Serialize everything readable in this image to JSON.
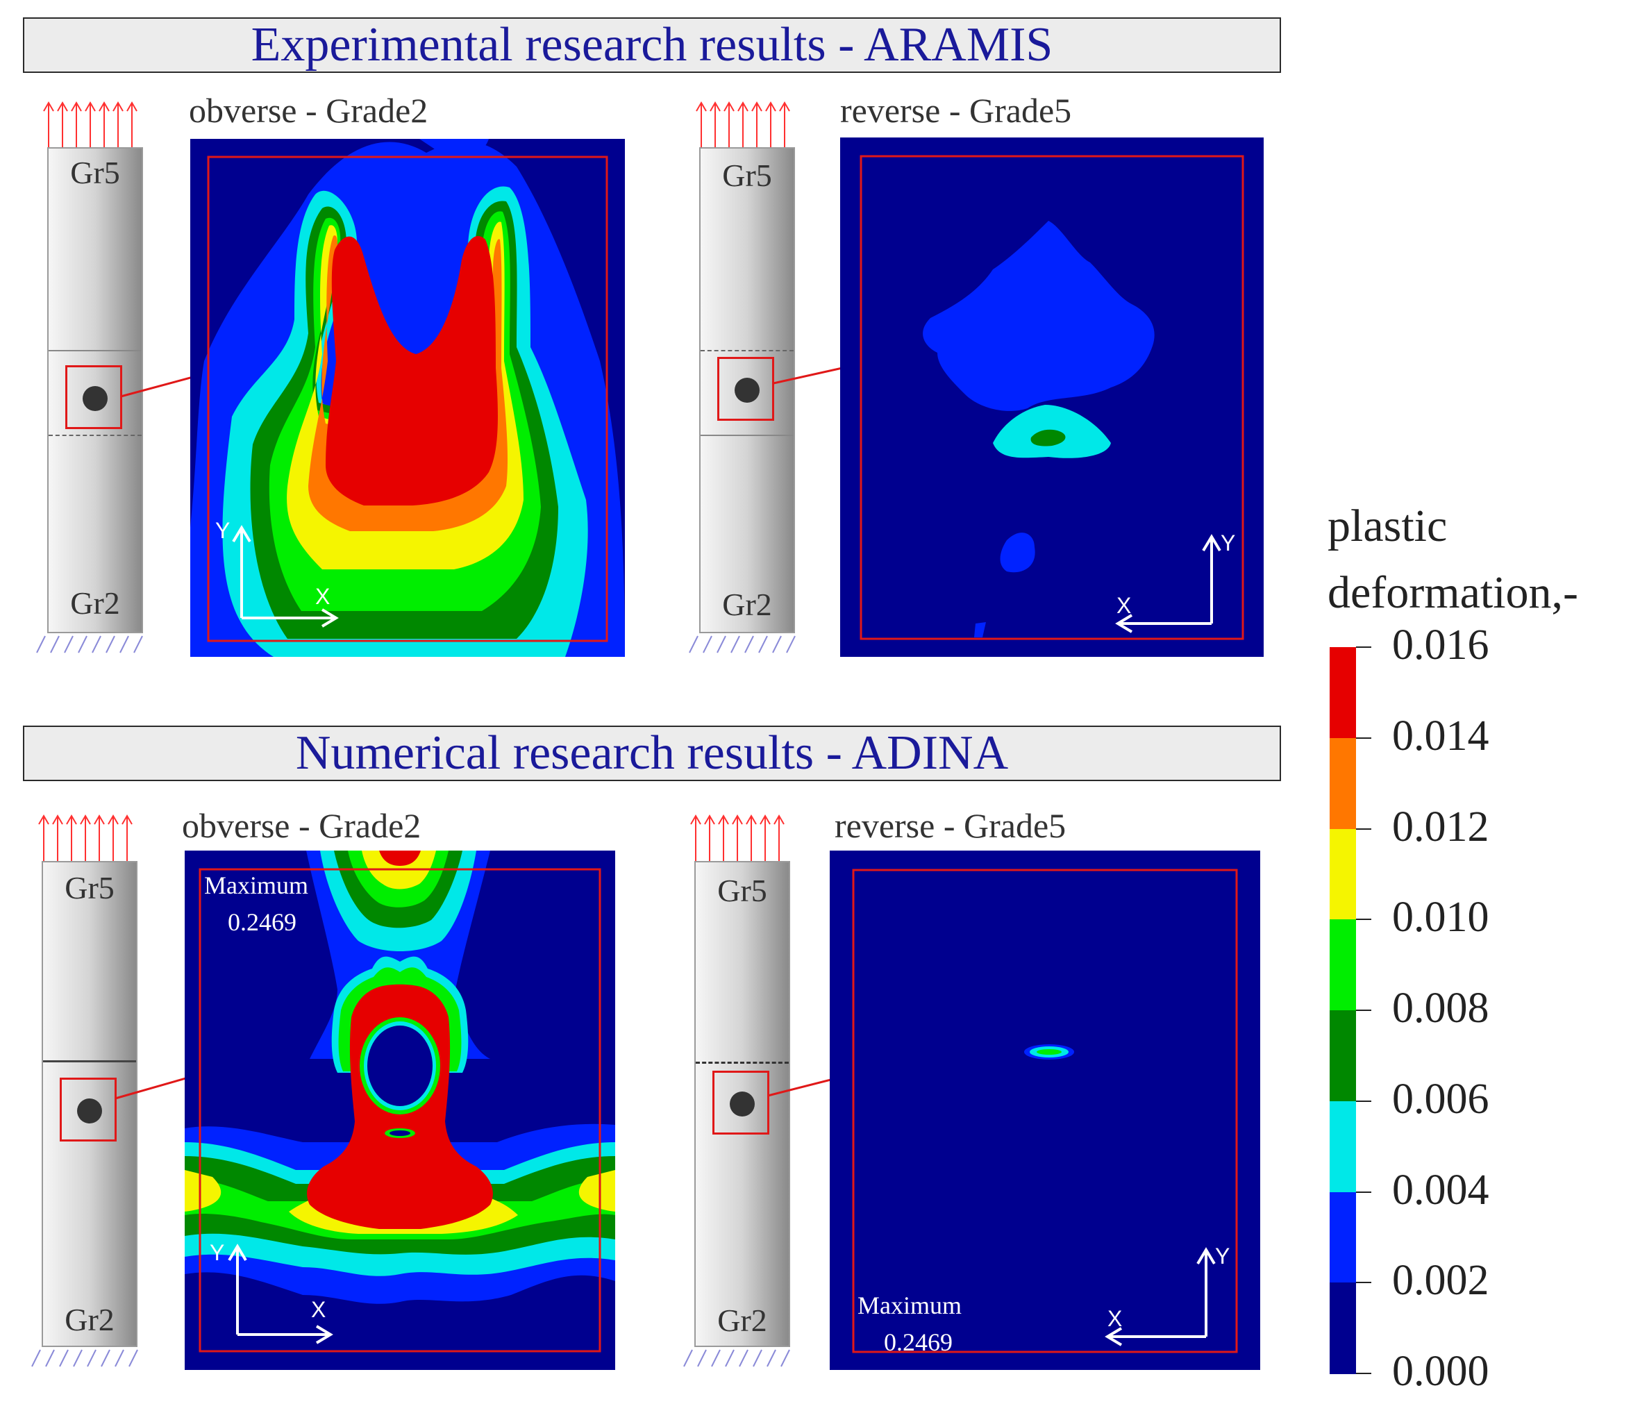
{
  "banners": {
    "experimental": "Experimental research results - ARAMIS",
    "numerical": "Numerical research results  - ADINA"
  },
  "panels": {
    "aramis_obverse": {
      "title": "obverse - Grade2"
    },
    "aramis_reverse": {
      "title": "reverse - Grade5"
    },
    "adina_obverse": {
      "title": "obverse - Grade2",
      "max_label": "Maximum",
      "max_value": "0.2469"
    },
    "adina_reverse": {
      "title": "reverse - Grade5",
      "max_label": "Maximum",
      "max_value": "0.2469"
    }
  },
  "specimen": {
    "top_label": "Gr5",
    "bottom_label": "Gr2"
  },
  "axes": {
    "x": "X",
    "y": "Y"
  },
  "colorbar": {
    "title_line1": "plastic",
    "title_line2": "deformation,-",
    "ticks": [
      "0.016",
      "0.014",
      "0.012",
      "0.010",
      "0.008",
      "0.006",
      "0.004",
      "0.002",
      "0.000"
    ],
    "colors": [
      "#e60000",
      "#ff7700",
      "#f5f500",
      "#00ee00",
      "#008800",
      "#00e8e8",
      "#0022ff",
      "#00008f"
    ]
  },
  "colors": {
    "background": "#000090",
    "frame": "#e01818",
    "banner_text": "#1a1a9a"
  }
}
